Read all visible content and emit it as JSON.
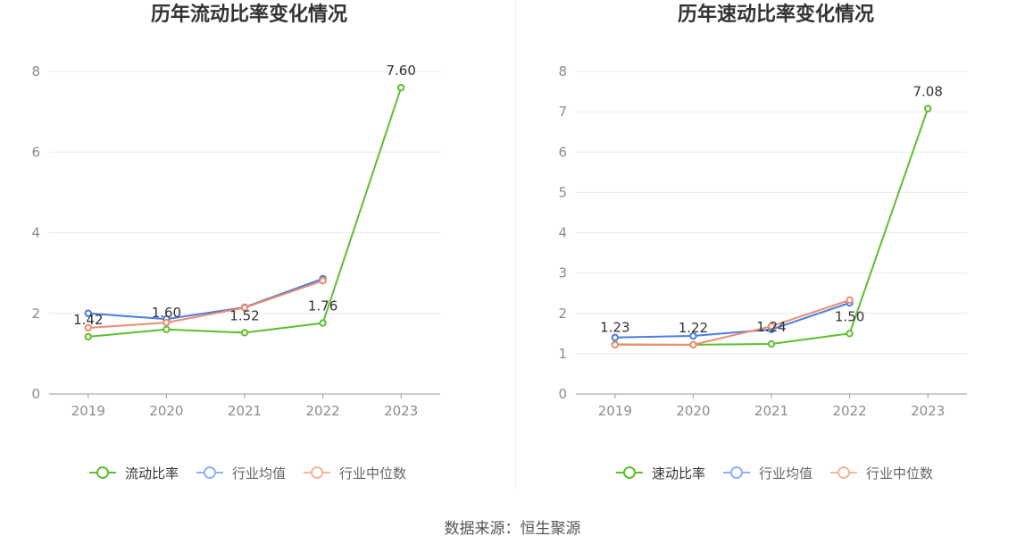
{
  "chart_data": [
    {
      "type": "line",
      "title": "历年流动比率变化情况",
      "categories": [
        "2019",
        "2020",
        "2021",
        "2022",
        "2023"
      ],
      "ylim": [
        0,
        8
      ],
      "yticks": [
        0,
        2,
        4,
        6,
        8
      ],
      "grid": true,
      "legend": "bottom",
      "series": [
        {
          "name": "流动比率",
          "values": [
            1.42,
            1.6,
            1.52,
            1.76,
            7.6
          ],
          "color": "#5cbf2e",
          "legend_color": "#5cbf2e",
          "data_labels": true
        },
        {
          "name": "行业均值",
          "values": [
            2.0,
            1.86,
            2.15,
            2.86,
            null
          ],
          "color": "#4a7ce0",
          "legend_color": "#8fb2f2",
          "data_labels": false
        },
        {
          "name": "行业中位数",
          "values": [
            1.64,
            1.77,
            2.14,
            2.81,
            null
          ],
          "color": "#ee8b6c",
          "legend_color": "#f6b49e",
          "data_labels": false
        }
      ]
    },
    {
      "type": "line",
      "title": "历年速动比率变化情况",
      "categories": [
        "2019",
        "2020",
        "2021",
        "2022",
        "2023"
      ],
      "ylim": [
        0,
        8
      ],
      "yticks": [
        0,
        1,
        2,
        3,
        4,
        5,
        6,
        7,
        8
      ],
      "grid": true,
      "legend": "bottom",
      "series": [
        {
          "name": "速动比率",
          "values": [
            1.23,
            1.22,
            1.24,
            1.5,
            7.08
          ],
          "color": "#5cbf2e",
          "legend_color": "#5cbf2e",
          "data_labels": true
        },
        {
          "name": "行业均值",
          "values": [
            1.4,
            1.44,
            1.6,
            2.26,
            null
          ],
          "color": "#4a7ce0",
          "legend_color": "#8fb2f2",
          "data_labels": false
        },
        {
          "name": "行业中位数",
          "values": [
            1.22,
            1.22,
            1.68,
            2.33,
            null
          ],
          "color": "#ee8b6c",
          "legend_color": "#f6b49e",
          "data_labels": false
        }
      ]
    }
  ],
  "source": "数据来源：恒生聚源"
}
